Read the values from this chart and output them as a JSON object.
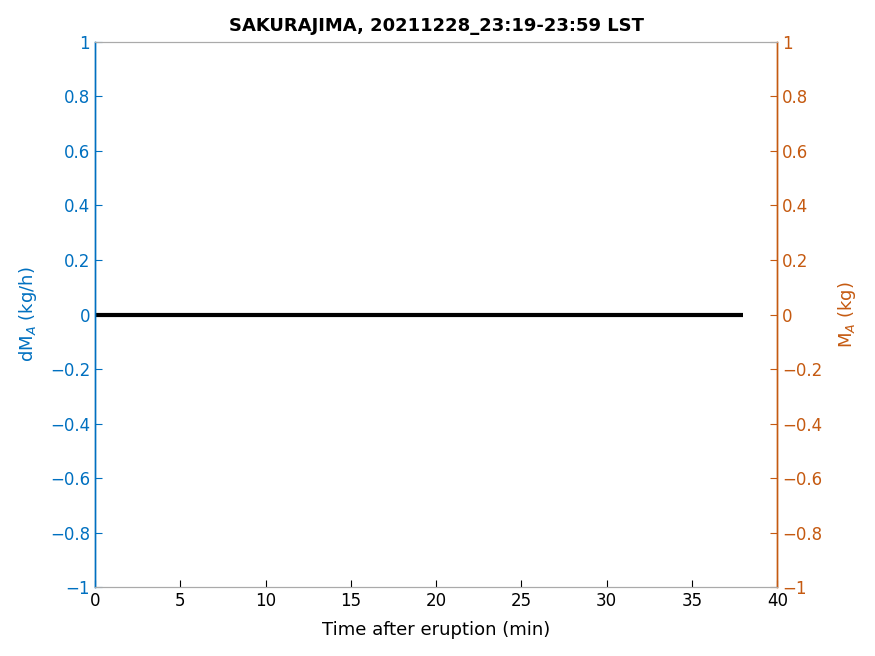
{
  "title": "SAKURAJIMA, 20211228_23:19-23:59 LST",
  "title_fontsize": 13,
  "title_fontweight": "bold",
  "xlabel": "Time after eruption (min)",
  "ylabel_left": "dM$_A$ (kg/h)",
  "ylabel_right": "M$_A$ (kg)",
  "left_color": "#0070C0",
  "right_color": "#C55A11",
  "line_color": "#000000",
  "line_width": 3.0,
  "xlim": [
    0,
    40
  ],
  "ylim": [
    -1,
    1
  ],
  "xticks": [
    0,
    5,
    10,
    15,
    20,
    25,
    30,
    35,
    40
  ],
  "yticks": [
    -1.0,
    -0.8,
    -0.6,
    -0.4,
    -0.2,
    0.0,
    0.2,
    0.4,
    0.6,
    0.8,
    1.0
  ],
  "ytick_labels": [
    "−1",
    "−0.8",
    "−0.6",
    "−0.4",
    "−0.2",
    "0",
    "0.2",
    "0.4",
    "0.6",
    "0.8",
    "1"
  ],
  "x_data": [
    0,
    38
  ],
  "y_data": [
    0,
    0
  ],
  "xlabel_fontsize": 13,
  "ylabel_fontsize": 13,
  "tick_fontsize": 12,
  "background_color": "#ffffff",
  "spine_color": "#aaaaaa",
  "left_spine_color": "#0070C0",
  "right_spine_color": "#C55A11"
}
